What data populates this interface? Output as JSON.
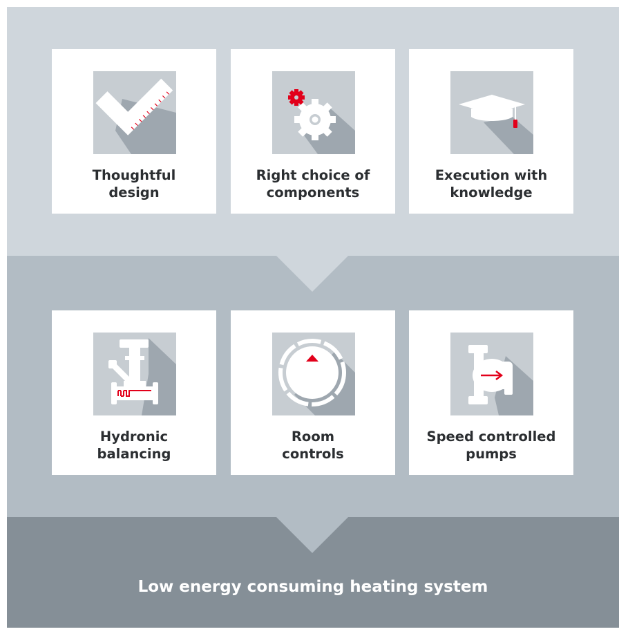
{
  "top_row": [
    {
      "label_1": "Thoughtful",
      "label_2": "design",
      "icon": "square-ruler-icon"
    },
    {
      "label_1": "Right choice of",
      "label_2": "components",
      "icon": "gears-icon"
    },
    {
      "label_1": "Execution with",
      "label_2": "knowledge",
      "icon": "graduation-cap-icon"
    }
  ],
  "bottom_row": [
    {
      "label_1": "Hydronic",
      "label_2": "balancing",
      "icon": "balancing-valve-icon"
    },
    {
      "label_1": "Room",
      "label_2": "controls",
      "icon": "thermostat-icon"
    },
    {
      "label_1": "Speed controlled",
      "label_2": "pumps",
      "icon": "pump-icon"
    }
  ],
  "result": "Low energy consuming heating system",
  "colors": {
    "top_band": "#cfd6dc",
    "middle_band": "#b2bcc4",
    "bottom_band": "#858f97",
    "icon_bg": "#c7cdd2",
    "accent": "#e2001a"
  }
}
